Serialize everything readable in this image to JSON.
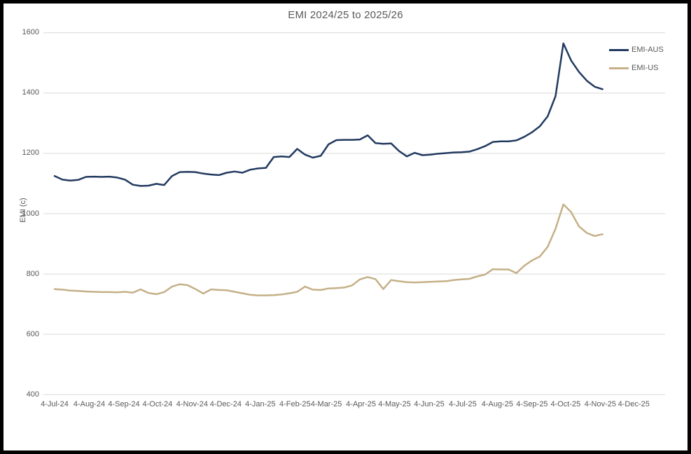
{
  "window": {
    "background": "#FFFFFF",
    "frame_border_color": "#000000"
  },
  "colors": {
    "text": "#595959",
    "gridline": "#D9D9D9",
    "aus_line": "#223A60",
    "us_line": "#C5B087"
  },
  "chart_data": {
    "type": "line",
    "title": "EMI 2024/25 to 2025/26",
    "xlabel": "",
    "ylabel": "EMI (c)",
    "ylim": [
      400,
      1600
    ],
    "y_ticks": [
      1600,
      1400,
      1200,
      1000,
      800,
      600,
      400
    ],
    "x_tick_labels": [
      "4-Jul-24",
      "4-Aug-24",
      "4-Sep-24",
      "4-Oct-24",
      "4-Nov-24",
      "4-Dec-24",
      "4-Jan-25",
      "4-Feb-25",
      "4-Mar-25",
      "4-Apr-25",
      "4-May-25",
      "4-Jun-25",
      "4-Jul-25",
      "4-Aug-25",
      "4-Sep-25",
      "4-Oct-25",
      "4-Nov-25",
      "4-Dec-25"
    ],
    "grid": "horizontal",
    "legend_position": "top-right",
    "start_date": "2024-07-04",
    "interval_days": 7,
    "series": [
      {
        "name": "EMI-AUS",
        "color": "#223A60",
        "values": [
          1125,
          1113,
          1110,
          1112,
          1122,
          1123,
          1122,
          1123,
          1120,
          1113,
          1096,
          1092,
          1093,
          1099,
          1095,
          1125,
          1138,
          1139,
          1138,
          1133,
          1130,
          1128,
          1136,
          1140,
          1136,
          1146,
          1150,
          1152,
          1188,
          1190,
          1188,
          1215,
          1196,
          1186,
          1192,
          1230,
          1244,
          1245,
          1245,
          1246,
          1260,
          1234,
          1232,
          1233,
          1208,
          1190,
          1202,
          1194,
          1196,
          1199,
          1201,
          1203,
          1204,
          1206,
          1214,
          1224,
          1238,
          1240,
          1240,
          1243,
          1255,
          1270,
          1290,
          1323,
          1390,
          1565,
          1508,
          1470,
          1441,
          1421,
          1413
        ]
      },
      {
        "name": "EMI-US",
        "color": "#C5B087",
        "values": [
          750,
          748,
          745,
          744,
          742,
          741,
          740,
          740,
          739,
          741,
          738,
          749,
          737,
          733,
          740,
          758,
          766,
          763,
          750,
          735,
          749,
          747,
          746,
          741,
          736,
          731,
          729,
          729,
          730,
          732,
          736,
          741,
          758,
          748,
          747,
          752,
          753,
          755,
          762,
          782,
          790,
          783,
          750,
          780,
          776,
          773,
          772,
          773,
          774,
          775,
          776,
          780,
          782,
          784,
          792,
          798,
          816,
          815,
          815,
          803,
          827,
          845,
          858,
          890,
          950,
          1031,
          1005,
          958,
          936,
          926,
          932
        ]
      }
    ]
  }
}
